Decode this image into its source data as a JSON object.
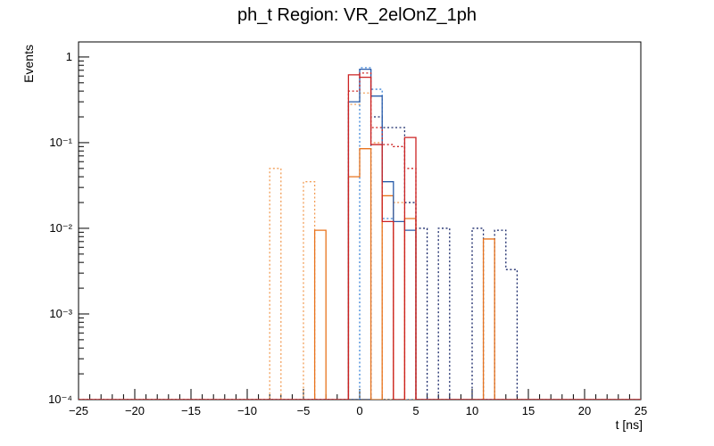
{
  "window": {
    "title": "ph_t Region: VR_2elOnZ_1ph"
  },
  "chart_data": {
    "type": "histogram-step",
    "title": "ph_t Region: VR_2elOnZ_1ph",
    "xlabel": "t [ns]",
    "ylabel": "Events",
    "x_range": [
      -25,
      25
    ],
    "y_range_log": [
      0.0001,
      1.5
    ],
    "x_major_tick_step": 5,
    "x_minor_tick_step": 1,
    "x_tick_labels": [
      "−25",
      "−20",
      "−15",
      "−10",
      "−5",
      "0",
      "5",
      "10",
      "15",
      "20",
      "25"
    ],
    "y_decade_labels": [
      "1",
      "10⁻¹",
      "10⁻²",
      "10⁻³",
      "10⁻⁴"
    ],
    "grid": false,
    "legend": null,
    "background": "#ffffff",
    "frame_color": "#000000",
    "series": [
      {
        "name": "lightblue-dotted",
        "color": "#3d85d8",
        "style": "dotted",
        "bins": [
          [
            0,
            1,
            0.75
          ],
          [
            1,
            2,
            0.42
          ],
          [
            2,
            3,
            0.013
          ]
        ]
      },
      {
        "name": "navy-dotted",
        "color": "#1b2a6b",
        "style": "dotted",
        "bins": [
          [
            1,
            2,
            0.2
          ],
          [
            2,
            3,
            0.15
          ],
          [
            3,
            4,
            0.15
          ],
          [
            4,
            5,
            0.02
          ],
          [
            5,
            6,
            0.01
          ],
          [
            7,
            8,
            0.01
          ],
          [
            10,
            11,
            0.01
          ],
          [
            12,
            13,
            0.0095
          ],
          [
            13,
            14,
            0.0033
          ]
        ]
      },
      {
        "name": "orange-dotted",
        "color": "#f29e57",
        "style": "dotted",
        "bins": [
          [
            -8,
            -7,
            0.05
          ],
          [
            -5,
            -4,
            0.035
          ],
          [
            -1,
            0,
            0.28
          ],
          [
            0,
            1,
            0.38
          ],
          [
            1,
            2,
            0.1
          ],
          [
            3,
            4,
            0.02
          ]
        ]
      },
      {
        "name": "orange-solid",
        "color": "#e8731d",
        "style": "solid",
        "bins": [
          [
            -4,
            -3,
            0.0095
          ],
          [
            -1,
            0,
            0.04
          ],
          [
            0,
            1,
            0.085
          ],
          [
            2,
            3,
            0.024
          ],
          [
            4,
            5,
            0.013
          ],
          [
            11,
            12,
            0.0075
          ]
        ]
      },
      {
        "name": "blue-solid",
        "color": "#2a5caa",
        "style": "solid",
        "bins": [
          [
            -1,
            0,
            0.3
          ],
          [
            0,
            1,
            0.72
          ],
          [
            1,
            2,
            0.35
          ],
          [
            2,
            3,
            0.035
          ],
          [
            3,
            4,
            0.012
          ],
          [
            4,
            5,
            0.0095
          ]
        ]
      },
      {
        "name": "red-dotted",
        "color": "#cc2222",
        "style": "dotted",
        "bins": [
          [
            -1,
            0,
            0.4
          ],
          [
            0,
            1,
            0.65
          ],
          [
            1,
            2,
            0.15
          ],
          [
            2,
            3,
            0.095
          ],
          [
            3,
            4,
            0.09
          ],
          [
            4,
            5,
            0.05
          ]
        ]
      },
      {
        "name": "red-solid",
        "color": "#cc2222",
        "style": "solid",
        "bins": [
          [
            -1,
            0,
            0.62
          ],
          [
            0,
            1,
            0.58
          ],
          [
            1,
            2,
            0.095
          ],
          [
            2,
            3,
            0.012
          ],
          [
            4,
            5,
            0.115
          ]
        ]
      }
    ]
  }
}
